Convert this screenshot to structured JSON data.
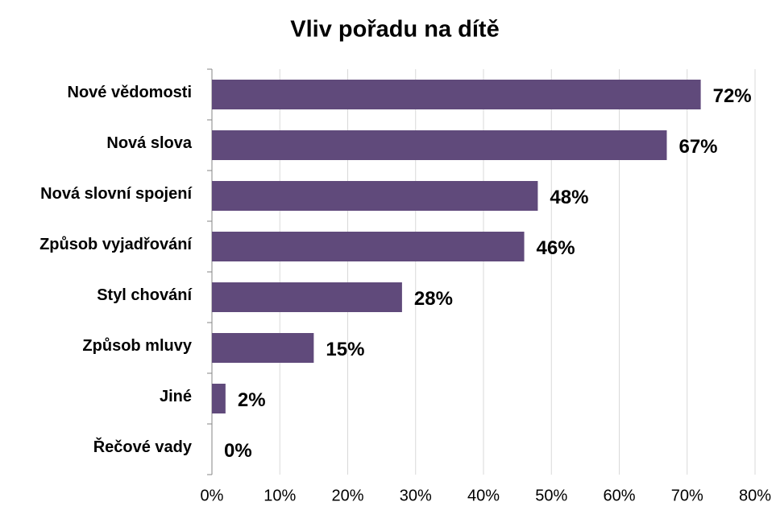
{
  "chart_data": {
    "type": "bar",
    "orientation": "horizontal",
    "title": "Vliv pořadu na dítě",
    "categories": [
      "Nové vědomosti",
      "Nová slova",
      "Nová slovní spojení",
      "Způsob vyjadřování",
      "Styl chování",
      "Způsob mluvy",
      "Jiné",
      "Řečové vady"
    ],
    "values": [
      72,
      67,
      48,
      46,
      28,
      15,
      2,
      0
    ],
    "value_labels": [
      "72%",
      "67%",
      "48%",
      "46%",
      "28%",
      "15%",
      "2%",
      "0%"
    ],
    "color": "#604a7b",
    "xlim": [
      0,
      80
    ],
    "xticks": [
      {
        "value": 0,
        "label": "0%"
      },
      {
        "value": 10,
        "label": "10%"
      },
      {
        "value": 20,
        "label": "20%"
      },
      {
        "value": 30,
        "label": "30%"
      },
      {
        "value": 40,
        "label": "40%"
      },
      {
        "value": 50,
        "label": "50%"
      },
      {
        "value": 60,
        "label": "60%"
      },
      {
        "value": 70,
        "label": "70%"
      },
      {
        "value": 80,
        "label": "80%"
      }
    ],
    "grid": true
  }
}
